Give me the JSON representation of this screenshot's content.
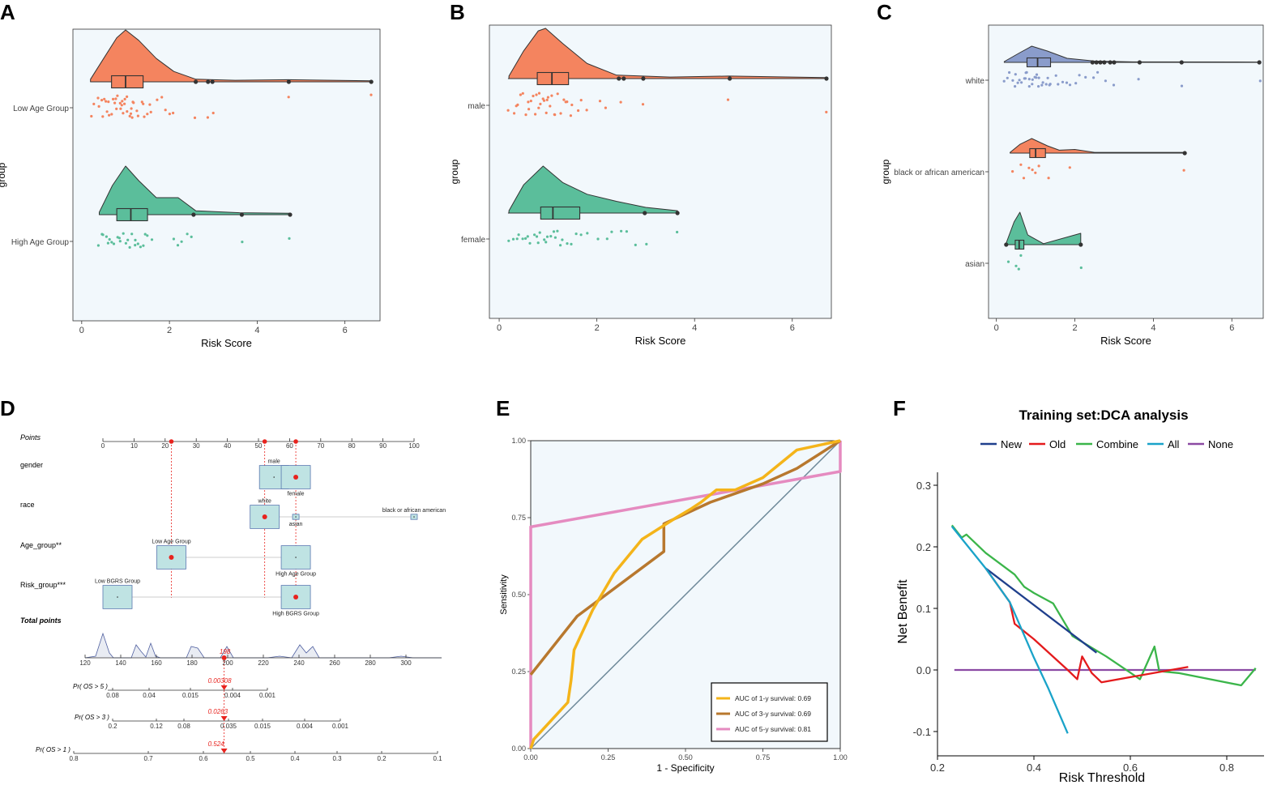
{
  "colors": {
    "orange": "#F4845F",
    "green": "#5BBE9B",
    "blue": "#8A9CCB",
    "panel_bg": "#F2F8FC",
    "box_fill": "#BFE3E3",
    "red": "#E8231E",
    "yellow": "#F4B41A",
    "brown": "#B8782E",
    "pink": "#E58BC0",
    "grey": "#6F8A9A",
    "navy": "#1F3F8C",
    "dca_red": "#E41A1C",
    "dca_green": "#3BB54A",
    "dca_cyan": "#1AA3C9",
    "purple": "#8B4AA3"
  },
  "panels": {
    "A": {
      "label": "A"
    },
    "B": {
      "label": "B"
    },
    "C": {
      "label": "C"
    },
    "D": {
      "label": "D"
    },
    "E": {
      "label": "E"
    },
    "F": {
      "label": "F"
    }
  },
  "chart_data": [
    {
      "panel": "A",
      "type": "raincloud",
      "xlabel": "Risk Score",
      "ylabel": "group",
      "xlim": [
        -0.2,
        6.8
      ],
      "xticks": [
        0,
        2,
        4,
        6
      ],
      "groups": [
        {
          "name": "Low Age Group",
          "color": "orange",
          "box": {
            "q1": 0.68,
            "median": 1.0,
            "q3": 1.4,
            "whisker_low": 0.2,
            "whisker_high": 2.6
          },
          "outliers": [
            2.6,
            2.88,
            2.98,
            4.72,
            6.6
          ],
          "density": [
            [
              0.2,
              0.05
            ],
            [
              0.5,
              0.45
            ],
            [
              0.8,
              0.85
            ],
            [
              1.0,
              1.0
            ],
            [
              1.3,
              0.8
            ],
            [
              1.7,
              0.45
            ],
            [
              2.1,
              0.2
            ],
            [
              2.6,
              0.05
            ],
            [
              3.5,
              0.03
            ],
            [
              4.7,
              0.04
            ],
            [
              6.6,
              0.02
            ]
          ],
          "points": [
            0.2,
            0.3,
            0.35,
            0.4,
            0.45,
            0.5,
            0.52,
            0.55,
            0.6,
            0.62,
            0.65,
            0.7,
            0.72,
            0.75,
            0.78,
            0.8,
            0.82,
            0.85,
            0.88,
            0.9,
            0.92,
            0.95,
            0.98,
            1.0,
            1.02,
            1.05,
            1.08,
            1.1,
            1.12,
            1.15,
            1.18,
            1.2,
            1.25,
            1.3,
            1.35,
            1.4,
            1.45,
            1.5,
            1.55,
            1.6,
            1.7,
            1.8,
            1.9,
            2.0,
            2.1,
            2.6,
            2.9,
            3.0,
            4.7,
            6.6
          ]
        },
        {
          "name": "High Age Group",
          "color": "green",
          "box": {
            "q1": 0.8,
            "median": 1.12,
            "q3": 1.5,
            "whisker_low": 0.4,
            "whisker_high": 2.55
          },
          "outliers": [
            2.55,
            3.65,
            4.75
          ],
          "density": [
            [
              0.4,
              0.05
            ],
            [
              0.7,
              0.6
            ],
            [
              1.0,
              1.0
            ],
            [
              1.3,
              0.7
            ],
            [
              1.7,
              0.35
            ],
            [
              2.2,
              0.35
            ],
            [
              2.6,
              0.08
            ],
            [
              3.6,
              0.04
            ],
            [
              4.75,
              0.03
            ]
          ],
          "points": [
            0.4,
            0.45,
            0.5,
            0.55,
            0.6,
            0.65,
            0.7,
            0.75,
            0.8,
            0.85,
            0.9,
            0.95,
            1.0,
            1.05,
            1.1,
            1.15,
            1.2,
            1.25,
            1.3,
            1.35,
            1.4,
            1.45,
            1.5,
            1.6,
            2.1,
            2.2,
            2.3,
            2.4,
            2.5,
            3.65,
            4.75
          ]
        }
      ]
    },
    {
      "panel": "B",
      "type": "raincloud",
      "xlabel": "Risk Score",
      "ylabel": "group",
      "xlim": [
        -0.2,
        6.8
      ],
      "xticks": [
        0,
        2,
        4,
        6
      ],
      "groups": [
        {
          "name": "male",
          "color": "orange",
          "box": {
            "q1": 0.78,
            "median": 1.08,
            "q3": 1.42,
            "whisker_low": 0.18,
            "whisker_high": 2.45
          },
          "outliers": [
            2.45,
            2.55,
            2.95,
            4.72,
            6.7
          ],
          "density": [
            [
              0.2,
              0.05
            ],
            [
              0.5,
              0.55
            ],
            [
              0.8,
              0.95
            ],
            [
              0.95,
              1.0
            ],
            [
              1.3,
              0.7
            ],
            [
              1.8,
              0.3
            ],
            [
              2.4,
              0.07
            ],
            [
              3.5,
              0.03
            ],
            [
              4.7,
              0.05
            ],
            [
              6.7,
              0.02
            ]
          ],
          "points": [
            0.2,
            0.3,
            0.35,
            0.4,
            0.45,
            0.5,
            0.55,
            0.6,
            0.62,
            0.65,
            0.7,
            0.72,
            0.75,
            0.8,
            0.82,
            0.85,
            0.9,
            0.92,
            0.95,
            1.0,
            1.02,
            1.05,
            1.1,
            1.12,
            1.15,
            1.2,
            1.25,
            1.3,
            1.35,
            1.4,
            1.45,
            1.5,
            1.6,
            1.7,
            1.8,
            2.05,
            2.2,
            2.5,
            2.95,
            4.7,
            6.7
          ]
        },
        {
          "name": "female",
          "color": "green",
          "box": {
            "q1": 0.85,
            "median": 1.1,
            "q3": 1.65,
            "whisker_low": 0.18,
            "whisker_high": 3.65
          },
          "outliers": [
            2.98,
            3.65
          ],
          "density": [
            [
              0.2,
              0.05
            ],
            [
              0.5,
              0.6
            ],
            [
              0.9,
              1.0
            ],
            [
              1.3,
              0.65
            ],
            [
              1.8,
              0.4
            ],
            [
              2.4,
              0.25
            ],
            [
              3.0,
              0.12
            ],
            [
              3.65,
              0.05
            ]
          ],
          "points": [
            0.2,
            0.3,
            0.35,
            0.4,
            0.5,
            0.55,
            0.6,
            0.65,
            0.7,
            0.75,
            0.8,
            0.85,
            0.9,
            0.95,
            1.0,
            1.05,
            1.1,
            1.15,
            1.2,
            1.25,
            1.3,
            1.4,
            1.5,
            1.6,
            1.7,
            1.8,
            2.0,
            2.2,
            2.3,
            2.5,
            2.6,
            2.8,
            3.0,
            3.65
          ]
        }
      ]
    },
    {
      "panel": "C",
      "type": "raincloud",
      "xlabel": "Risk Score",
      "ylabel": "group",
      "xlim": [
        -0.2,
        6.8
      ],
      "xticks": [
        0,
        2,
        4,
        6
      ],
      "groups": [
        {
          "name": "white",
          "color": "blue",
          "box": {
            "q1": 0.78,
            "median": 1.05,
            "q3": 1.38,
            "whisker_low": 0.2,
            "whisker_high": 2.45
          },
          "outliers": [
            2.45,
            2.55,
            2.65,
            2.75,
            2.9,
            3.0,
            3.65,
            4.72,
            6.7
          ],
          "density": [
            [
              0.2,
              0.05
            ],
            [
              0.6,
              0.6
            ],
            [
              0.9,
              1.0
            ],
            [
              1.3,
              0.7
            ],
            [
              1.8,
              0.25
            ],
            [
              2.5,
              0.08
            ],
            [
              3.5,
              0.03
            ],
            [
              6.7,
              0.02
            ]
          ],
          "points": [
            0.2,
            0.3,
            0.35,
            0.4,
            0.45,
            0.5,
            0.55,
            0.6,
            0.65,
            0.7,
            0.72,
            0.75,
            0.8,
            0.82,
            0.85,
            0.9,
            0.92,
            0.95,
            1.0,
            1.02,
            1.05,
            1.1,
            1.15,
            1.2,
            1.25,
            1.3,
            1.35,
            1.4,
            1.5,
            1.6,
            1.7,
            1.8,
            1.9,
            2.0,
            2.1,
            2.3,
            2.5,
            2.6,
            2.8,
            3.0,
            3.65,
            4.7,
            6.7
          ]
        },
        {
          "name": "black or african american",
          "color": "orange",
          "box": {
            "q1": 0.85,
            "median": 1.0,
            "q3": 1.25,
            "whisker_low": 0.35,
            "whisker_high": 4.8
          },
          "outliers": [
            4.8
          ],
          "density": [
            [
              0.35,
              0.05
            ],
            [
              0.6,
              0.6
            ],
            [
              0.9,
              1.0
            ],
            [
              1.3,
              0.5
            ],
            [
              1.6,
              0.2
            ],
            [
              2.0,
              0.25
            ],
            [
              2.5,
              0.05
            ],
            [
              4.8,
              0.05
            ]
          ],
          "points": [
            0.4,
            0.6,
            0.7,
            0.85,
            0.9,
            1.0,
            1.1,
            1.3,
            1.9,
            4.8
          ]
        },
        {
          "name": "asian",
          "color": "green",
          "box": {
            "q1": 0.48,
            "median": 0.58,
            "q3": 0.7,
            "whisker_low": 0.25,
            "whisker_high": 2.15
          },
          "outliers": [
            0.25,
            2.15
          ],
          "density": [
            [
              0.25,
              0.05
            ],
            [
              0.45,
              0.7
            ],
            [
              0.6,
              1.0
            ],
            [
              0.8,
              0.3
            ],
            [
              1.2,
              0.03
            ],
            [
              2.15,
              0.35
            ]
          ],
          "points": [
            0.28,
            0.5,
            0.55,
            0.62,
            2.15
          ]
        }
      ]
    },
    {
      "panel": "D",
      "type": "nomogram",
      "points_axis": {
        "label": "Points",
        "ticks": [
          0,
          10,
          20,
          30,
          40,
          50,
          60,
          70,
          80,
          90,
          100
        ]
      },
      "variables": [
        {
          "name": "gender",
          "levels": [
            {
              "label": "male",
              "points": 55
            },
            {
              "label": "female",
              "points": 62
            }
          ],
          "selected": "female"
        },
        {
          "name": "race",
          "levels": [
            {
              "label": "white",
              "points": 52
            },
            {
              "label": "asian",
              "points": 62
            },
            {
              "label": "black or african american",
              "points": 100
            }
          ],
          "selected": "white"
        },
        {
          "name": "Age_group**",
          "levels": [
            {
              "label": "Low Age Group",
              "points": 22
            },
            {
              "label": "High Age Group",
              "points": 62
            }
          ],
          "selected": "Low Age Group"
        },
        {
          "name": "Risk_group***",
          "levels": [
            {
              "label": "Low BGRS Group",
              "points": 0
            },
            {
              "label": "High BGRS Group",
              "points": 62
            }
          ],
          "selected": "High BGRS Group"
        }
      ],
      "selected_points": [
        22,
        52,
        62
      ],
      "total_points": {
        "label": "Total points",
        "ticks": [
          120,
          140,
          160,
          180,
          200,
          220,
          240,
          260,
          280,
          300
        ],
        "value": 198,
        "value_label": "198"
      },
      "probabilities": [
        {
          "label": "Pr( OS > 5 )",
          "ticks": [
            "0.08",
            "0.04",
            "0.015",
            "0.004",
            "0.001"
          ],
          "value": "0.00308"
        },
        {
          "label": "Pr( OS > 3 )",
          "ticks": [
            "0.2",
            "0.12",
            "0.08",
            "0.035",
            "0.015",
            "0.004",
            "0.001"
          ],
          "value": "0.0263"
        },
        {
          "label": "Pr( OS > 1 )",
          "ticks": [
            "0.8",
            "0.7",
            "0.6",
            "0.5",
            "0.4",
            "0.3",
            "0.2",
            "0.1"
          ],
          "value": "0.524"
        }
      ]
    },
    {
      "panel": "E",
      "type": "line",
      "title": "",
      "xlabel": "1 - Specificity",
      "ylabel": "Sensitivity",
      "xlim": [
        0,
        1
      ],
      "ylim": [
        0,
        1
      ],
      "xticks": [
        "0.00",
        "0.25",
        "0.50",
        "0.75",
        "1.00"
      ],
      "yticks": [
        "0.00",
        "0.25",
        "0.50",
        "0.75",
        "1.00"
      ],
      "series": [
        {
          "name": "AUC of 1-y survival: 0.69",
          "color": "yellow",
          "x": [
            0,
            0.01,
            0.12,
            0.13,
            0.14,
            0.2,
            0.27,
            0.36,
            0.47,
            0.52,
            0.55,
            0.6,
            0.66,
            0.75,
            0.86,
            1.0
          ],
          "y": [
            0,
            0.03,
            0.15,
            0.22,
            0.32,
            0.45,
            0.57,
            0.68,
            0.75,
            0.78,
            0.8,
            0.84,
            0.84,
            0.88,
            0.97,
            1.0
          ]
        },
        {
          "name": "AUC of 3-y survival: 0.69",
          "color": "brown",
          "x": [
            0,
            0.15,
            0.43,
            0.43,
            0.58,
            0.75,
            0.86,
            1.0
          ],
          "y": [
            0.24,
            0.43,
            0.64,
            0.73,
            0.8,
            0.86,
            0.91,
            1.0
          ]
        },
        {
          "name": "AUC of 5-y survival: 0.81",
          "color": "pink",
          "x": [
            0,
            0,
            1.0,
            1.0
          ],
          "y": [
            0,
            0.72,
            0.9,
            1.0
          ]
        },
        {
          "name": "reference",
          "color": "grey",
          "x": [
            0,
            1
          ],
          "y": [
            0,
            1
          ]
        }
      ]
    },
    {
      "panel": "F",
      "type": "line",
      "title": "Training set:DCA analysis",
      "xlabel": "Risk Threshold",
      "ylabel": "Net Benefit",
      "xlim": [
        0.2,
        0.87
      ],
      "ylim": [
        -0.13,
        0.32
      ],
      "xticks": [
        "0.2",
        "0.4",
        "0.6",
        "0.8"
      ],
      "yticks": [
        "-0.1",
        "0.0",
        "0.1",
        "0.2",
        "0.3"
      ],
      "series": [
        {
          "name": "New",
          "color": "navy",
          "x": [
            0.3,
            0.53
          ],
          "y": [
            0.165,
            0.028
          ]
        },
        {
          "name": "Old",
          "color": "dca_red",
          "x": [
            0.3,
            0.35,
            0.36,
            0.4,
            0.47,
            0.49,
            0.5,
            0.52,
            0.54,
            0.72
          ],
          "y": [
            0.165,
            0.11,
            0.075,
            0.05,
            0.0,
            -0.015,
            0.022,
            -0.005,
            -0.02,
            0.005
          ]
        },
        {
          "name": "Combine",
          "color": "dca_green",
          "x": [
            0.23,
            0.25,
            0.26,
            0.3,
            0.36,
            0.38,
            0.4,
            0.44,
            0.48,
            0.55,
            0.62,
            0.65,
            0.66,
            0.7,
            0.83,
            0.86
          ],
          "y": [
            0.235,
            0.215,
            0.22,
            0.19,
            0.155,
            0.135,
            0.125,
            0.108,
            0.055,
            0.022,
            -0.015,
            0.038,
            -0.002,
            -0.005,
            -0.025,
            0.003
          ]
        },
        {
          "name": "All",
          "color": "dca_cyan",
          "x": [
            0.23,
            0.3,
            0.35,
            0.4,
            0.43,
            0.47
          ],
          "y": [
            0.233,
            0.165,
            0.11,
            0.02,
            -0.03,
            -0.103
          ]
        },
        {
          "name": "None",
          "color": "purple",
          "x": [
            0.235,
            0.86
          ],
          "y": [
            0.0,
            0.0
          ]
        }
      ]
    }
  ]
}
